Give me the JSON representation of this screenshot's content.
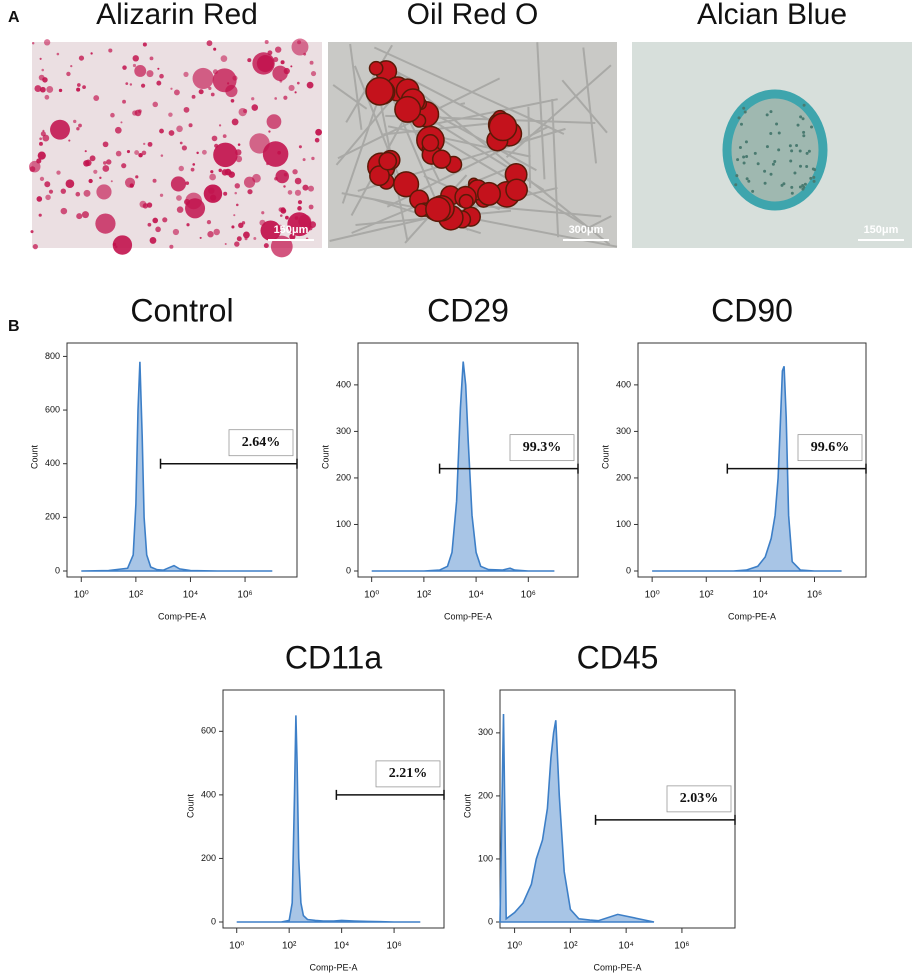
{
  "panel_a": {
    "label": "A",
    "images": [
      {
        "title": "Alizarin Red",
        "scale_bar": "150μm"
      },
      {
        "title": "Oil Red O",
        "scale_bar": "300μm"
      },
      {
        "title": "Alcian Blue",
        "scale_bar": "150μm"
      }
    ]
  },
  "panel_b": {
    "label": "B"
  },
  "chart_data": [
    {
      "type": "histogram",
      "title": "Control",
      "xlabel": "Comp-PE-A",
      "ylabel": "Count",
      "xscale": "log",
      "color": "#3d7fc7",
      "x": [
        1,
        10,
        50,
        80,
        100,
        120,
        140,
        170,
        200,
        250,
        350,
        600,
        1000,
        1600,
        2500,
        4000,
        10000,
        100000,
        1000000,
        10000000
      ],
      "values": [
        0,
        2,
        10,
        60,
        250,
        600,
        780,
        500,
        200,
        60,
        15,
        5,
        3,
        12,
        20,
        8,
        2,
        0,
        0,
        0
      ],
      "xlim": [
        0.3,
        80000000
      ],
      "ylim": [
        0,
        850
      ],
      "xticks": [
        {
          "value": 1,
          "label": "10⁰"
        },
        {
          "value": 100,
          "label": "10²"
        },
        {
          "value": 10000,
          "label": "10⁴"
        },
        {
          "value": 1000000,
          "label": "10⁶"
        }
      ],
      "yticks": [
        0,
        200,
        400,
        600,
        800
      ],
      "gate": {
        "x": [
          800,
          80000000
        ],
        "y": 400,
        "value": 2.64,
        "value_label": "2.64%"
      }
    },
    {
      "type": "histogram",
      "title": "CD29",
      "xlabel": "Comp-PE-A",
      "ylabel": "Count",
      "xscale": "log",
      "color": "#3d7fc7",
      "x": [
        1,
        10,
        100,
        400,
        800,
        1200,
        1800,
        2500,
        3200,
        4000,
        5000,
        7000,
        10000,
        15000,
        30000,
        100000,
        200000,
        300000,
        1000000,
        10000000
      ],
      "values": [
        0,
        0,
        0,
        2,
        10,
        40,
        150,
        350,
        450,
        400,
        280,
        120,
        40,
        10,
        3,
        2,
        6,
        2,
        0,
        0
      ],
      "xlim": [
        0.3,
        80000000
      ],
      "ylim": [
        0,
        490
      ],
      "xticks": [
        {
          "value": 1,
          "label": "10⁰"
        },
        {
          "value": 100,
          "label": "10²"
        },
        {
          "value": 10000,
          "label": "10⁴"
        },
        {
          "value": 1000000,
          "label": "10⁶"
        }
      ],
      "yticks": [
        0,
        100,
        200,
        300,
        400
      ],
      "gate": {
        "x": [
          400,
          80000000
        ],
        "y": 220,
        "value": 99.3,
        "value_label": "99.3%"
      }
    },
    {
      "type": "histogram",
      "title": "CD90",
      "xlabel": "Comp-PE-A",
      "ylabel": "Count",
      "xscale": "log",
      "color": "#3d7fc7",
      "x": [
        1,
        10,
        100,
        1000,
        3000,
        8000,
        15000,
        25000,
        35000,
        45000,
        55000,
        65000,
        75000,
        90000,
        110000,
        150000,
        300000,
        1000000,
        3000000,
        10000000
      ],
      "values": [
        0,
        0,
        0,
        0,
        2,
        10,
        30,
        70,
        120,
        200,
        320,
        430,
        440,
        330,
        120,
        20,
        2,
        0,
        0,
        0
      ],
      "xlim": [
        0.3,
        80000000
      ],
      "ylim": [
        0,
        490
      ],
      "xticks": [
        {
          "value": 1,
          "label": "10⁰"
        },
        {
          "value": 100,
          "label": "10²"
        },
        {
          "value": 10000,
          "label": "10⁴"
        },
        {
          "value": 1000000,
          "label": "10⁶"
        }
      ],
      "yticks": [
        0,
        100,
        200,
        300,
        400
      ],
      "gate": {
        "x": [
          600,
          80000000
        ],
        "y": 220,
        "value": 99.6,
        "value_label": "99.6%"
      }
    },
    {
      "type": "histogram",
      "title": "CD11a",
      "xlabel": "Comp-PE-A",
      "ylabel": "Count",
      "xscale": "log",
      "color": "#3d7fc7",
      "x": [
        1,
        10,
        50,
        100,
        130,
        160,
        180,
        200,
        230,
        280,
        350,
        500,
        1000,
        2000,
        5000,
        10000,
        30000,
        100000,
        1000000,
        10000000
      ],
      "values": [
        0,
        0,
        0,
        5,
        60,
        400,
        650,
        500,
        200,
        60,
        20,
        8,
        5,
        3,
        3,
        5,
        3,
        2,
        0,
        0
      ],
      "xlim": [
        0.3,
        80000000
      ],
      "ylim": [
        0,
        730
      ],
      "xticks": [
        {
          "value": 1,
          "label": "10⁰"
        },
        {
          "value": 100,
          "label": "10²"
        },
        {
          "value": 10000,
          "label": "10⁴"
        },
        {
          "value": 1000000,
          "label": "10⁶"
        }
      ],
      "yticks": [
        0,
        200,
        400,
        600
      ],
      "gate": {
        "x": [
          6300,
          80000000
        ],
        "y": 400,
        "value": 2.21,
        "value_label": "2.21%"
      }
    },
    {
      "type": "histogram",
      "title": "CD45",
      "xlabel": "Comp-PE-A",
      "ylabel": "Count",
      "xscale": "log",
      "color": "#3d7fc7",
      "x": [
        0.3,
        0.4,
        0.5,
        1,
        2,
        4,
        6,
        10,
        15,
        20,
        25,
        30,
        40,
        60,
        100,
        200,
        500,
        1000,
        5000,
        100000
      ],
      "values": [
        0,
        330,
        5,
        15,
        30,
        60,
        100,
        130,
        180,
        260,
        300,
        320,
        200,
        80,
        20,
        5,
        3,
        2,
        12,
        0
      ],
      "xlim": [
        0.3,
        80000000
      ],
      "ylim": [
        0,
        368
      ],
      "xticks": [
        {
          "value": 1,
          "label": "10⁰"
        },
        {
          "value": 100,
          "label": "10²"
        },
        {
          "value": 10000,
          "label": "10⁴"
        },
        {
          "value": 1000000,
          "label": "10⁶"
        }
      ],
      "yticks": [
        0,
        100,
        200,
        300
      ],
      "gate": {
        "x": [
          800,
          80000000
        ],
        "y": 162,
        "value": 2.03,
        "value_label": "2.03%"
      }
    }
  ]
}
